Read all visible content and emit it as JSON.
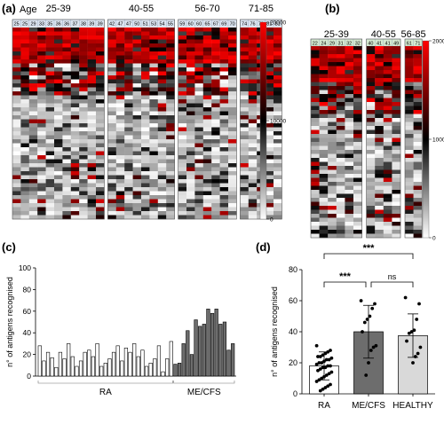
{
  "panel_labels": {
    "a": "(a)",
    "b": "(b)",
    "c": "(c)",
    "d": "(d)"
  },
  "heatmap_a": {
    "age_label": "Age",
    "groups": [
      {
        "label": "25-39",
        "ages": [
          "25",
          "25",
          "29",
          "33",
          "35",
          "36",
          "36",
          "37",
          "38",
          "39",
          "39"
        ]
      },
      {
        "label": "40-55",
        "ages": [
          "42",
          "47",
          "47",
          "50",
          "51",
          "53",
          "54",
          "55"
        ]
      },
      {
        "label": "56-70",
        "ages": [
          "59",
          "60",
          "60",
          "65",
          "67",
          "69",
          "70"
        ]
      },
      {
        "label": "71-85",
        "ages": [
          "74",
          "76",
          "78",
          "81",
          "81"
        ]
      }
    ]
  },
  "heatmap_b": {
    "groups": [
      {
        "label": "25-39",
        "ages": [
          "22",
          "24",
          "29",
          "31",
          "32",
          "32"
        ]
      },
      {
        "label": "40-55",
        "ages": [
          "40",
          "41",
          "41",
          "49"
        ]
      },
      {
        "label": "56-85",
        "ages": [
          "61",
          "71"
        ]
      }
    ]
  },
  "colorbar_ticks": [
    "20000",
    "10000",
    "0"
  ],
  "chart_data": [
    {
      "type": "heatmap",
      "panel": "a",
      "value_range": [
        0,
        20000
      ],
      "colorscale": [
        "#ffffff",
        "#000000",
        "#ff0000"
      ],
      "rows": 48
    },
    {
      "type": "heatmap",
      "panel": "b",
      "value_range": [
        0,
        20000
      ],
      "colorscale": [
        "#ffffff",
        "#000000",
        "#ff0000"
      ],
      "rows": 48
    },
    {
      "type": "bar",
      "panel": "c",
      "ylabel": "n° of antigens recognised",
      "ylim": [
        0,
        100
      ],
      "yticks": [
        "0",
        "20",
        "40",
        "60",
        "80",
        "100"
      ],
      "group_labels": [
        "RA",
        "ME/CFS"
      ],
      "series": [
        {
          "name": "RA",
          "color": "#ffffff",
          "values": [
            28,
            14,
            22,
            17,
            8,
            22,
            16,
            30,
            18,
            9,
            14,
            22,
            24,
            18,
            30,
            9,
            12,
            16,
            22,
            28,
            14,
            26,
            22,
            30,
            18,
            24,
            9,
            12,
            16,
            28,
            4,
            16,
            32
          ]
        },
        {
          "name": "ME/CFS",
          "color": "#6d6d6d",
          "values": [
            11,
            12,
            30,
            42,
            20,
            52,
            46,
            48,
            62,
            58,
            62,
            48,
            50,
            24,
            30
          ]
        }
      ]
    },
    {
      "type": "bar",
      "panel": "d",
      "ylabel": "n° of antigens recognised",
      "ylim": [
        0,
        80
      ],
      "yticks": [
        "0",
        "20",
        "40",
        "60",
        "80"
      ],
      "categories": [
        "RA",
        "ME/CFS",
        "HEALTHY"
      ],
      "means": [
        18,
        40,
        37.5
      ],
      "sd": [
        9,
        17,
        14
      ],
      "colors": [
        "#ffffff",
        "#6d6d6d",
        "#d9d9d9"
      ],
      "points": [
        [
          31,
          28,
          27,
          26,
          25,
          24,
          24,
          23,
          22,
          22,
          21,
          20,
          20,
          19,
          18,
          18,
          17,
          17,
          16,
          15,
          14,
          13,
          12,
          11,
          10,
          9,
          8,
          6,
          5,
          4,
          3,
          2
        ],
        [
          60,
          58,
          55,
          50,
          48,
          46,
          40,
          31,
          30,
          28,
          20,
          12
        ],
        [
          62,
          58,
          48,
          41,
          40,
          39,
          34,
          30,
          26,
          24,
          20
        ]
      ],
      "significance": [
        {
          "from": 0,
          "to": 2,
          "label": "***"
        },
        {
          "from": 0,
          "to": 1,
          "label": "***"
        },
        {
          "from": 1,
          "to": 2,
          "label": "ns"
        }
      ]
    }
  ]
}
